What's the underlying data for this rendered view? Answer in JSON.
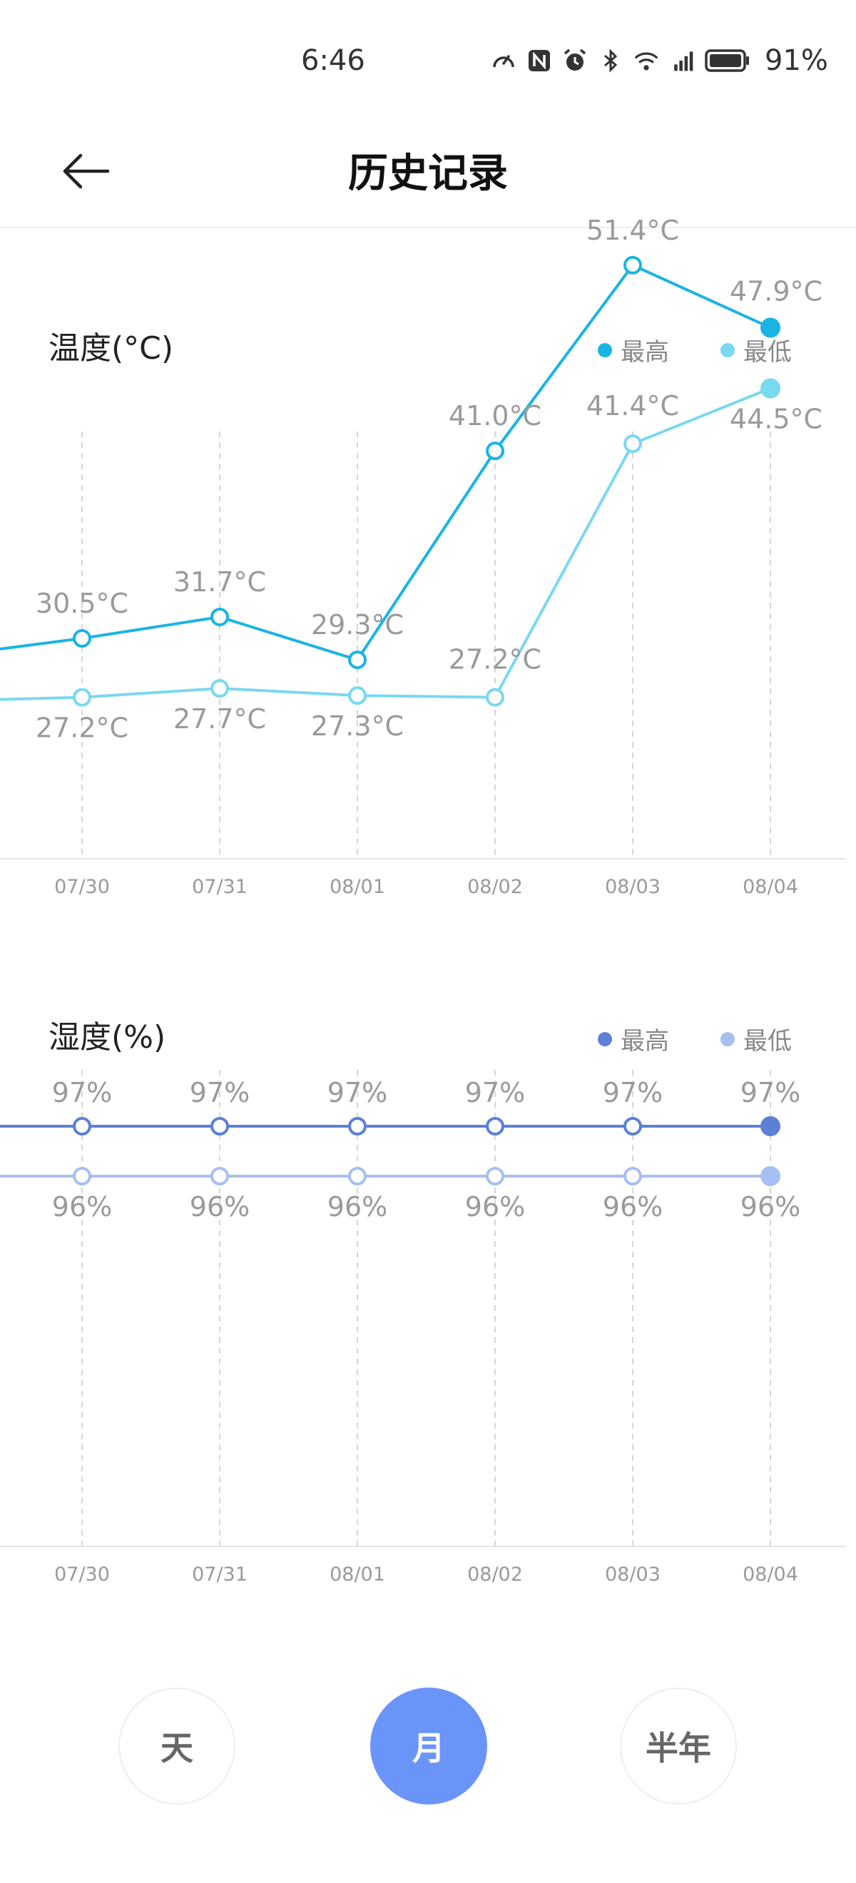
{
  "status_bar": {
    "time": "6:46",
    "battery": "91%"
  },
  "header": {
    "title": "历史记录"
  },
  "temperature": {
    "title": "温度(°C)",
    "legend": {
      "high": "最高",
      "low": "最低"
    },
    "colors": {
      "high": "#1ab4e2",
      "low": "#7ad8f0"
    }
  },
  "humidity": {
    "title": "湿度(%)",
    "legend": {
      "high": "最高",
      "low": "最低"
    },
    "colors": {
      "high": "#5c80d6",
      "low": "#a7bff2"
    }
  },
  "chart_data": [
    {
      "type": "line",
      "title": "温度(°C)",
      "categories": [
        "07/30",
        "07/31",
        "08/01",
        "08/02",
        "08/03",
        "08/04"
      ],
      "series": [
        {
          "name": "最高",
          "values": [
            30.5,
            31.7,
            29.3,
            41.0,
            51.4,
            47.9
          ],
          "labels": [
            "30.5°C",
            "31.7°C",
            "29.3°C",
            "41.0°C",
            "51.4°C",
            "47.9°C"
          ]
        },
        {
          "name": "最低",
          "values": [
            27.2,
            27.7,
            27.3,
            27.2,
            41.4,
            44.5
          ],
          "labels": [
            "27.2°C",
            "27.7°C",
            "27.3°C",
            "27.2°C",
            "41.4°C",
            "44.5°C"
          ]
        }
      ],
      "legend_position": "top-right"
    },
    {
      "type": "line",
      "title": "湿度(%)",
      "categories": [
        "07/30",
        "07/31",
        "08/01",
        "08/02",
        "08/03",
        "08/04"
      ],
      "series": [
        {
          "name": "最高",
          "values": [
            97,
            97,
            97,
            97,
            97,
            97
          ],
          "labels": [
            "97%",
            "97%",
            "97%",
            "97%",
            "97%",
            "97%"
          ]
        },
        {
          "name": "最低",
          "values": [
            96,
            96,
            96,
            96,
            96,
            96
          ],
          "labels": [
            "96%",
            "96%",
            "96%",
            "96%",
            "96%",
            "96%"
          ]
        }
      ],
      "legend_position": "top-right"
    }
  ],
  "tabs": [
    {
      "label": "天",
      "active": false
    },
    {
      "label": "月",
      "active": true
    },
    {
      "label": "半年",
      "active": false
    }
  ]
}
